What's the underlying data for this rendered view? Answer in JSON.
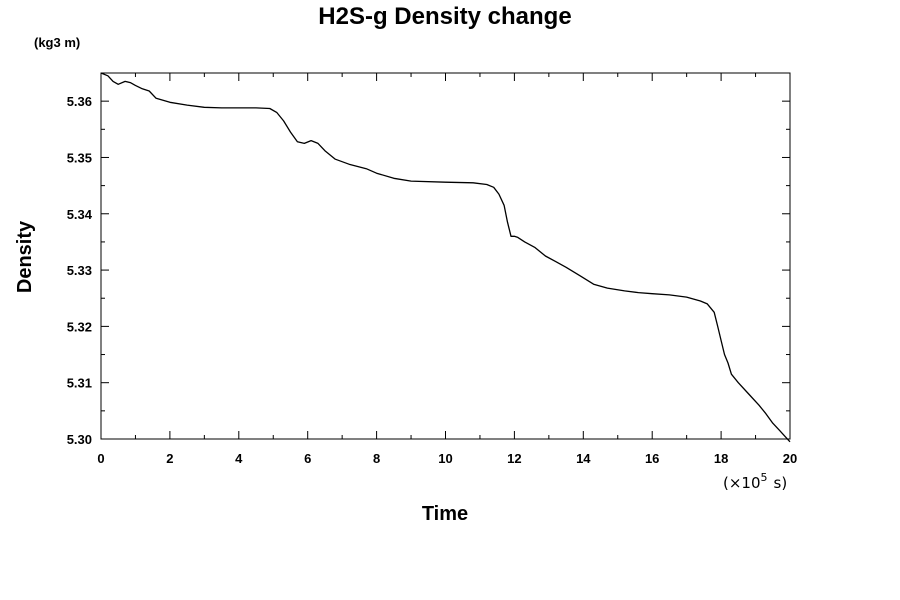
{
  "chart_data": {
    "type": "line",
    "title": "H2S-g Density change",
    "ylabel": "Density",
    "xlabel": "Time",
    "yunit": "(kg3 m)",
    "xscale_label": "(×10",
    "xscale_exp": "5",
    "xscale_unit": "s)",
    "xlim": [
      0,
      20
    ],
    "ylim": [
      5.3,
      5.365
    ],
    "xticks": [
      "0",
      "2",
      "4",
      "6",
      "8",
      "10",
      "12",
      "14",
      "16",
      "18",
      "20"
    ],
    "yticks": [
      "5.30",
      "5.31",
      "5.32",
      "5.33",
      "5.34",
      "5.35",
      "5.36"
    ],
    "grid": false,
    "series": [
      {
        "color": "#000000",
        "x": [
          0.0,
          0.2,
          0.35,
          0.5,
          0.7,
          0.85,
          1.0,
          1.2,
          1.4,
          1.6,
          2.0,
          2.5,
          3.0,
          3.5,
          4.0,
          4.5,
          4.9,
          5.1,
          5.3,
          5.5,
          5.7,
          5.9,
          6.1,
          6.3,
          6.5,
          6.8,
          7.2,
          7.7,
          8.0,
          8.5,
          9.0,
          10.0,
          10.8,
          11.2,
          11.4,
          11.55,
          11.7,
          11.8,
          11.9,
          12.0,
          12.1,
          12.3,
          12.6,
          12.9,
          13.2,
          13.5,
          13.9,
          14.3,
          14.7,
          15.2,
          15.6,
          16.0,
          16.5,
          17.0,
          17.4,
          17.6,
          17.8,
          17.9,
          18.0,
          18.1,
          18.2,
          18.3,
          18.5,
          18.8,
          19.1,
          19.3,
          19.5,
          19.7,
          19.85,
          20.0
        ],
        "y": [
          5.365,
          5.3645,
          5.3635,
          5.363,
          5.3635,
          5.3633,
          5.3628,
          5.3622,
          5.3618,
          5.3605,
          5.3598,
          5.3593,
          5.3589,
          5.3588,
          5.3588,
          5.3588,
          5.3587,
          5.358,
          5.3565,
          5.3545,
          5.3528,
          5.3525,
          5.353,
          5.3525,
          5.3512,
          5.3497,
          5.3488,
          5.348,
          5.3472,
          5.3463,
          5.3458,
          5.3456,
          5.3455,
          5.3452,
          5.3447,
          5.3435,
          5.3415,
          5.3385,
          5.336,
          5.336,
          5.3358,
          5.335,
          5.334,
          5.3325,
          5.3315,
          5.3305,
          5.329,
          5.3275,
          5.3268,
          5.3263,
          5.326,
          5.3258,
          5.3256,
          5.3252,
          5.3245,
          5.324,
          5.3225,
          5.32,
          5.3175,
          5.315,
          5.3135,
          5.3115,
          5.31,
          5.308,
          5.306,
          5.3045,
          5.3028,
          5.3015,
          5.3005,
          5.2995
        ]
      }
    ]
  }
}
